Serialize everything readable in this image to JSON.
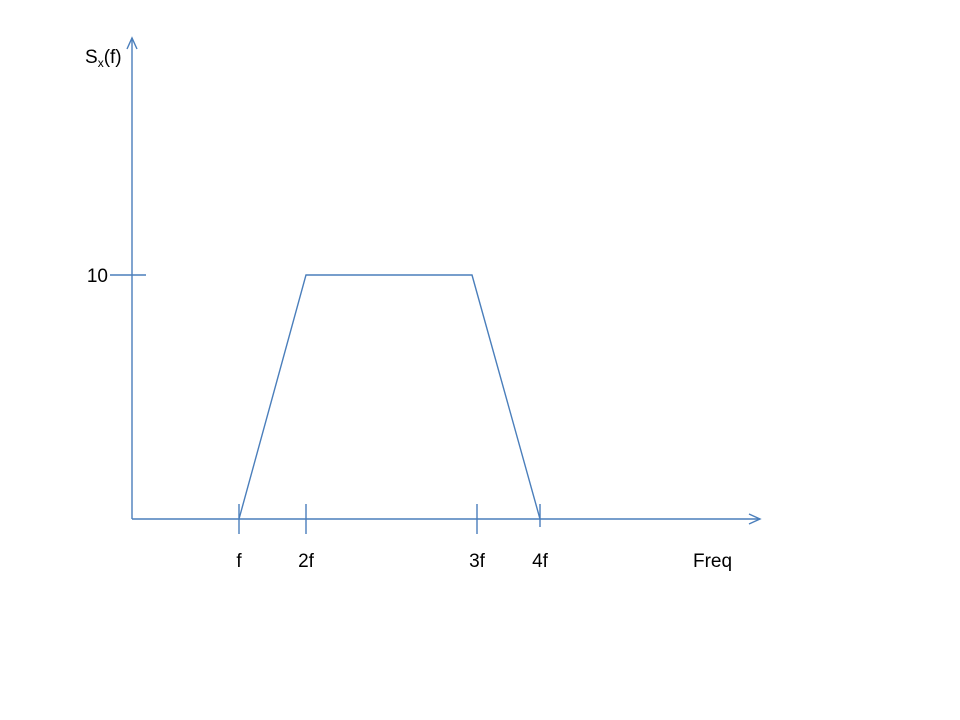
{
  "chart_data": {
    "type": "line",
    "ylabel": {
      "base": "S",
      "subscript": "x",
      "suffix": "(f)"
    },
    "xlabel": "Freq",
    "y_ticks": [
      {
        "value": 10,
        "label": "10"
      }
    ],
    "x_ticks": [
      {
        "value": 1,
        "label": "f"
      },
      {
        "value": 2,
        "label": "2f"
      },
      {
        "value": 3,
        "label": "3f"
      },
      {
        "value": 4,
        "label": "4f"
      }
    ],
    "series": [
      {
        "points": [
          {
            "x": 1,
            "y": 0
          },
          {
            "x": 2,
            "y": 10
          },
          {
            "x": 3,
            "y": 10
          },
          {
            "x": 4,
            "y": 0
          }
        ]
      }
    ],
    "line_color": "#4a7ebb",
    "axis_color": "#4a7ebb"
  }
}
